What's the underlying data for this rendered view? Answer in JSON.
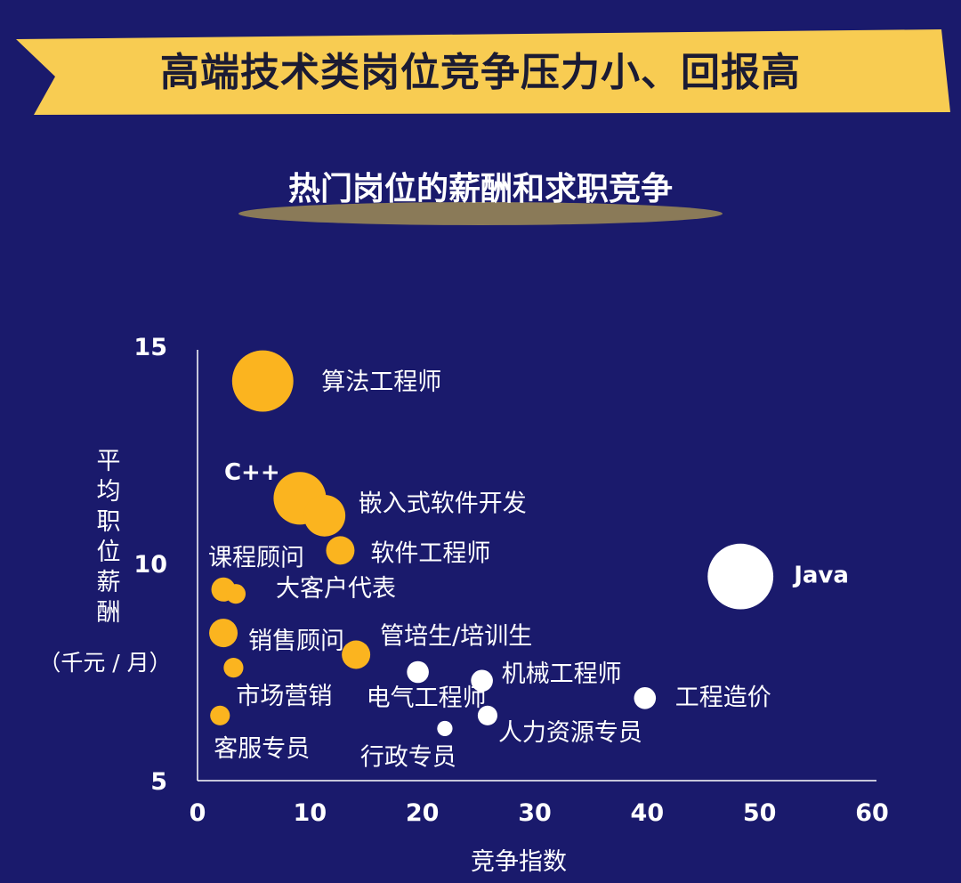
{
  "banner": {
    "title": "高端技术类岗位竞争压力小、回报高"
  },
  "subtitle": "热门岗位的薪酬和求职竞争",
  "colors": {
    "background": "#1a1a6c",
    "banner": "#f8cc52",
    "tech": "#fbb41f",
    "other": "#ffffff",
    "subtitle_shadow": "#8a7a58"
  },
  "chart_data": {
    "type": "scatter",
    "xlabel": "竞争指数",
    "ylabel": [
      "平",
      "均",
      "职",
      "位",
      "薪",
      "酬"
    ],
    "ylabel_unit": "（千元 / 月）",
    "xlim": [
      0,
      60
    ],
    "ylim": [
      5,
      15
    ],
    "xticks": [
      "0",
      "10",
      "20",
      "30",
      "40",
      "50",
      "60"
    ],
    "yticks": [
      "5",
      "10",
      "15"
    ],
    "grid": false,
    "points": [
      {
        "label": "算法工程师",
        "x": 5.8,
        "y": 14.2,
        "size": 2.8,
        "group": "tech"
      },
      {
        "label": "C++",
        "x": 9.1,
        "y": 11.5,
        "size": 2.4,
        "group": "tech"
      },
      {
        "label": "嵌入式软件开发",
        "x": 11.3,
        "y": 11.1,
        "size": 1.9,
        "group": "tech"
      },
      {
        "label": "软件工程师",
        "x": 12.7,
        "y": 10.3,
        "size": 1.3,
        "group": "tech"
      },
      {
        "label": "课程顾问",
        "x": 2.3,
        "y": 9.4,
        "size": 1.1,
        "group": "tech"
      },
      {
        "label": "大客户代表",
        "x": 3.4,
        "y": 9.3,
        "size": 0.9,
        "group": "tech"
      },
      {
        "label": "销售顾问",
        "x": 2.3,
        "y": 8.4,
        "size": 1.3,
        "group": "tech"
      },
      {
        "label": "管培生/培训生",
        "x": 14.1,
        "y": 7.9,
        "size": 1.3,
        "group": "tech"
      },
      {
        "label": "市场营销",
        "x": 3.2,
        "y": 7.6,
        "size": 0.9,
        "group": "tech"
      },
      {
        "label": "客服专员",
        "x": 2.0,
        "y": 6.5,
        "size": 0.9,
        "group": "tech"
      },
      {
        "label": "Java",
        "x": 48.3,
        "y": 9.7,
        "size": 3.0,
        "group": "other"
      },
      {
        "label": "电气工程师",
        "x": 19.6,
        "y": 7.5,
        "size": 1.0,
        "group": "other"
      },
      {
        "label": "机械工程师",
        "x": 25.3,
        "y": 7.3,
        "size": 1.0,
        "group": "other"
      },
      {
        "label": "工程造价",
        "x": 39.8,
        "y": 6.9,
        "size": 1.0,
        "group": "other"
      },
      {
        "label": "人力资源专员",
        "x": 25.8,
        "y": 6.5,
        "size": 0.9,
        "group": "other"
      },
      {
        "label": "行政专员",
        "x": 22.0,
        "y": 6.2,
        "size": 0.7,
        "group": "other"
      }
    ]
  }
}
